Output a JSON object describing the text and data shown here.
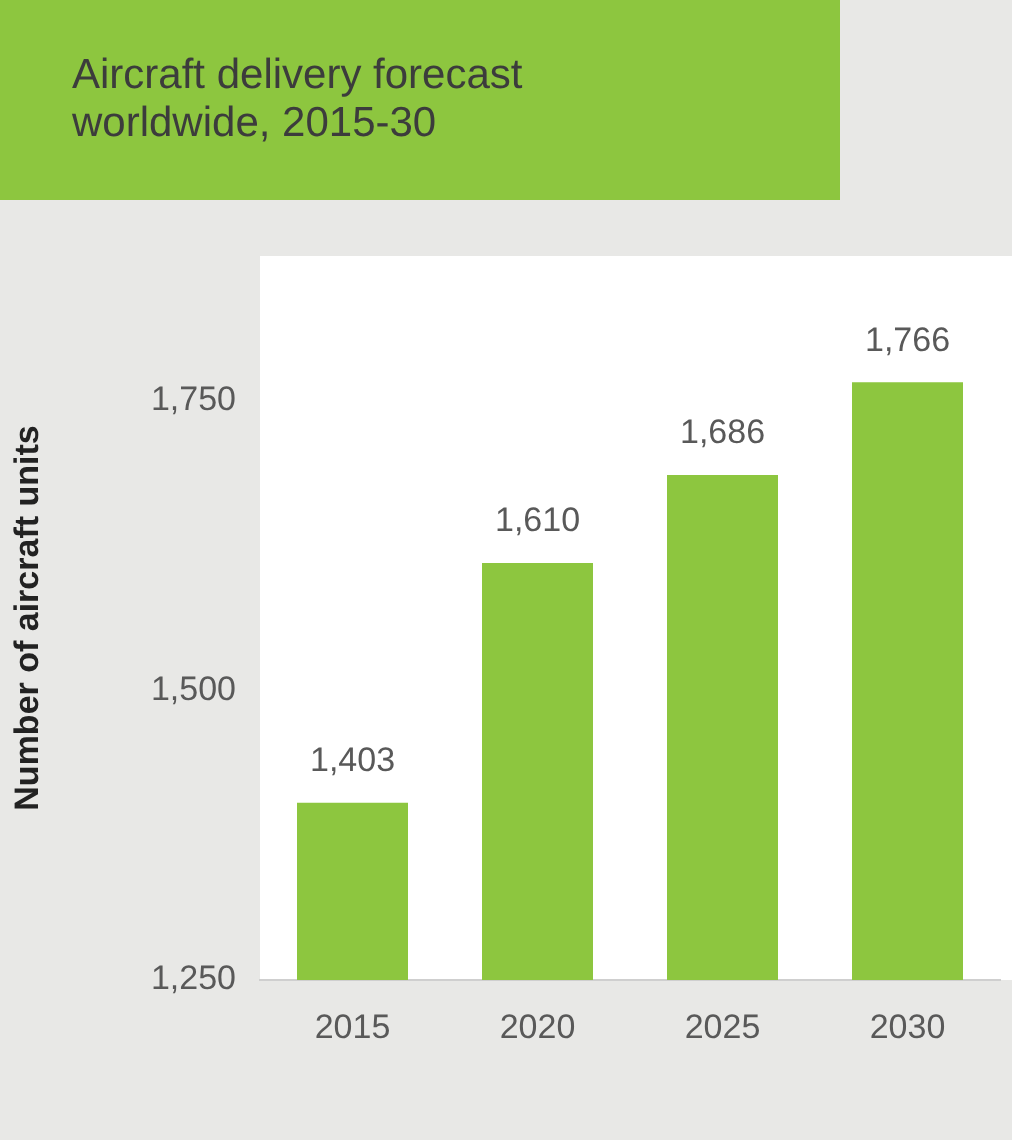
{
  "chart_data": {
    "type": "bar",
    "title": "Aircraft delivery forecast worldwide, 2015-30",
    "ylabel": "Number of aircraft units",
    "categories": [
      "2015",
      "2020",
      "2025",
      "2030"
    ],
    "values": [
      1403,
      1610,
      1686,
      1766
    ],
    "color": "#8dc63f",
    "ylim": [
      1250,
      1875
    ],
    "yticks": [
      {
        "value": 1250,
        "label": "1,250"
      },
      {
        "value": 1500,
        "label": "1,500"
      },
      {
        "value": 1750,
        "label": "1,750"
      }
    ],
    "value_labels": [
      "1,403",
      "1,610",
      "1,686",
      "1,766"
    ],
    "grid": false,
    "legend": false
  }
}
